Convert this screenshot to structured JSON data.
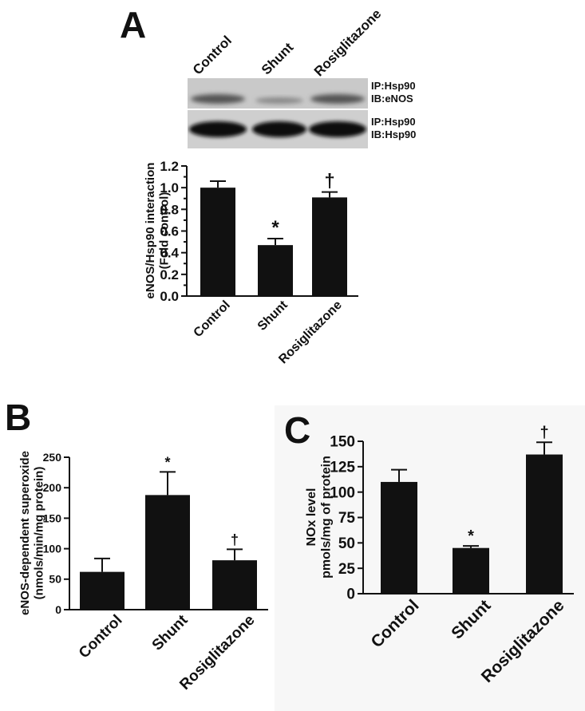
{
  "panels": {
    "a": "A",
    "b": "B",
    "c": "C"
  },
  "blot": {
    "lanes": [
      "Control",
      "Shunt",
      "Rosiglitazone"
    ],
    "top_label": [
      "IP:Hsp90",
      "IB:eNOS"
    ],
    "bottom_label": [
      "IP:Hsp90",
      "IB:Hsp90"
    ]
  },
  "chart_data": [
    {
      "panel": "A",
      "type": "bar",
      "categories": [
        "Control",
        "Shunt",
        "Rosiglitazone"
      ],
      "values": [
        1.0,
        0.47,
        0.91
      ],
      "errors": [
        0.06,
        0.06,
        0.05
      ],
      "annotations": [
        "",
        "*",
        "†"
      ],
      "ylabel": [
        "eNOS/Hsp90 interaction",
        "(Fold control)"
      ],
      "yticks": [
        "0.0",
        "0.1",
        "0.2",
        "0.3",
        "0.4",
        "0.5",
        "0.6",
        "0.7",
        "0.8",
        "0.9",
        "1.0",
        "1.1",
        "1.2"
      ],
      "ylim": [
        0,
        1.2
      ],
      "color": "#111111"
    },
    {
      "panel": "B",
      "type": "bar",
      "categories": [
        "Control",
        "Shunt",
        "Rosiglitazone"
      ],
      "values": [
        62,
        188,
        81
      ],
      "errors": [
        22,
        38,
        18
      ],
      "annotations": [
        "",
        "*",
        "†"
      ],
      "ylabel": [
        "eNOS-dependent superoxide",
        "(nmols/min/mg protein)"
      ],
      "yticks": [
        "0",
        "50",
        "100",
        "150",
        "200",
        "250"
      ],
      "ylim": [
        0,
        250
      ],
      "color": "#111111"
    },
    {
      "panel": "C",
      "type": "bar",
      "categories": [
        "Control",
        "Shunt",
        "Rosiglitazone"
      ],
      "values": [
        110,
        45,
        137
      ],
      "errors": [
        12,
        2,
        12
      ],
      "annotations": [
        "",
        "*",
        "†"
      ],
      "ylabel": [
        "NOx level",
        "pmols/mg of protein"
      ],
      "yticks": [
        "0",
        "25",
        "50",
        "75",
        "100",
        "125",
        "150"
      ],
      "ylim": [
        0,
        150
      ],
      "color": "#111111"
    }
  ]
}
